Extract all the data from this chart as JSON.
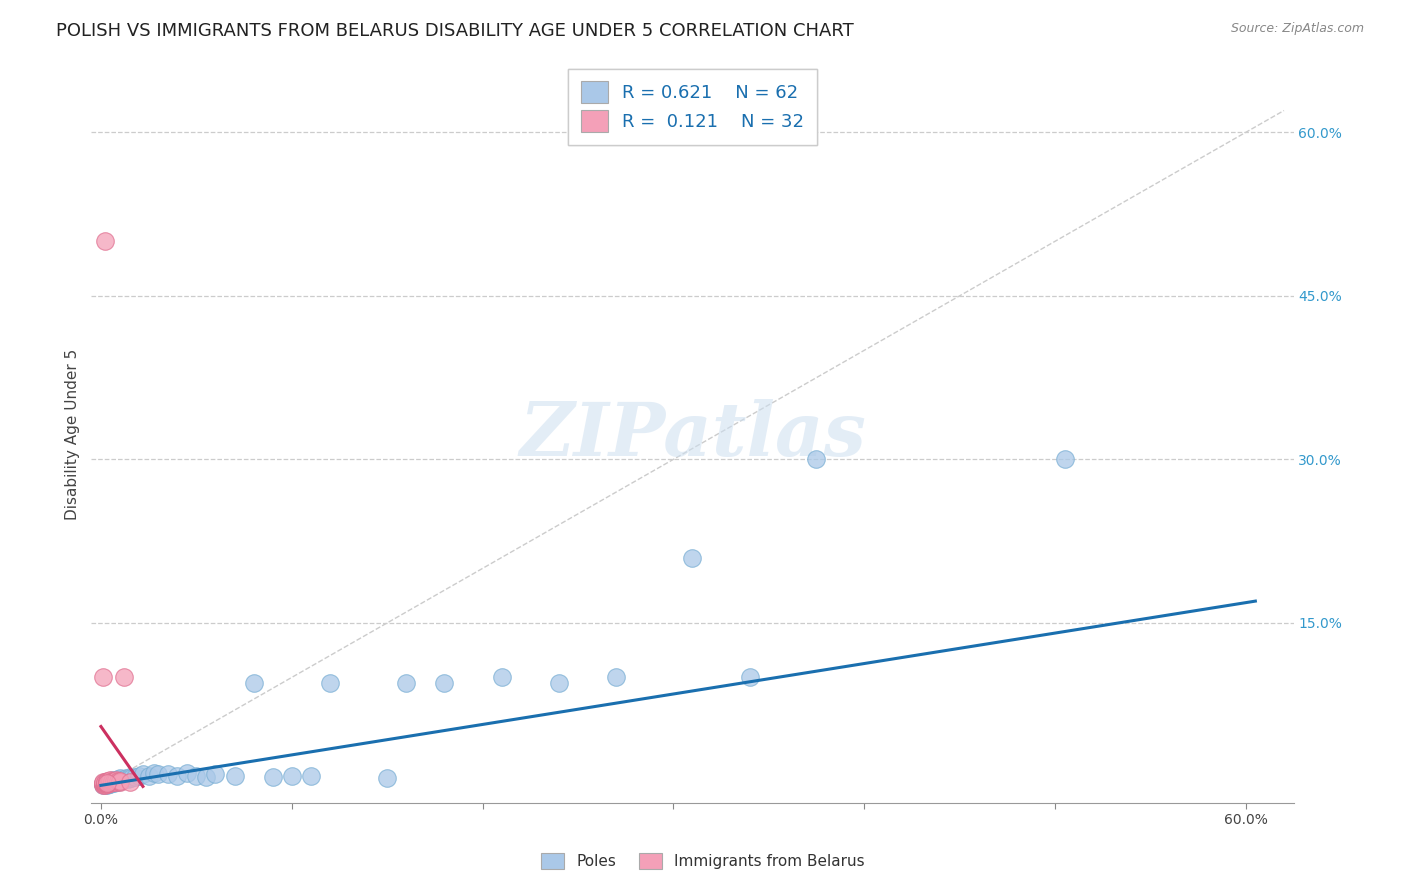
{
  "title": "POLISH VS IMMIGRANTS FROM BELARUS DISABILITY AGE UNDER 5 CORRELATION CHART",
  "source": "Source: ZipAtlas.com",
  "ylabel": "Disability Age Under 5",
  "xlim_min": -0.005,
  "xlim_max": 0.625,
  "ylim_min": -0.015,
  "ylim_max": 0.66,
  "poles_R": 0.621,
  "poles_N": 62,
  "belarus_R": 0.121,
  "belarus_N": 32,
  "poles_color": "#aac8e8",
  "poles_edge_color": "#7aafd4",
  "poles_line_color": "#1a6faf",
  "belarus_color": "#f4a0b8",
  "belarus_edge_color": "#e07090",
  "belarus_line_color": "#cc3060",
  "grid_color": "#cccccc",
  "legend_label_poles": "Poles",
  "legend_label_belarus": "Immigrants from Belarus",
  "right_ytick_color": "#3399cc",
  "poles_x": [
    0.001,
    0.001,
    0.001,
    0.002,
    0.002,
    0.002,
    0.002,
    0.003,
    0.003,
    0.003,
    0.003,
    0.004,
    0.004,
    0.004,
    0.005,
    0.005,
    0.005,
    0.006,
    0.006,
    0.006,
    0.007,
    0.007,
    0.008,
    0.008,
    0.009,
    0.009,
    0.01,
    0.01,
    0.011,
    0.012,
    0.013,
    0.014,
    0.015,
    0.016,
    0.018,
    0.02,
    0.022,
    0.025,
    0.028,
    0.03,
    0.035,
    0.04,
    0.045,
    0.05,
    0.055,
    0.06,
    0.07,
    0.08,
    0.09,
    0.1,
    0.11,
    0.12,
    0.15,
    0.16,
    0.18,
    0.21,
    0.24,
    0.27,
    0.31,
    0.34,
    0.375,
    0.505
  ],
  "poles_y": [
    0.001,
    0.002,
    0.003,
    0.001,
    0.002,
    0.003,
    0.004,
    0.001,
    0.002,
    0.003,
    0.004,
    0.002,
    0.003,
    0.004,
    0.002,
    0.003,
    0.005,
    0.003,
    0.004,
    0.006,
    0.003,
    0.005,
    0.004,
    0.006,
    0.004,
    0.007,
    0.005,
    0.008,
    0.006,
    0.007,
    0.008,
    0.007,
    0.009,
    0.008,
    0.009,
    0.01,
    0.011,
    0.01,
    0.012,
    0.011,
    0.011,
    0.01,
    0.012,
    0.01,
    0.009,
    0.011,
    0.01,
    0.095,
    0.009,
    0.01,
    0.01,
    0.095,
    0.008,
    0.095,
    0.095,
    0.1,
    0.095,
    0.1,
    0.21,
    0.1,
    0.3,
    0.3
  ],
  "belarus_x": [
    0.001,
    0.001,
    0.001,
    0.001,
    0.002,
    0.002,
    0.002,
    0.002,
    0.002,
    0.003,
    0.003,
    0.003,
    0.003,
    0.004,
    0.004,
    0.004,
    0.005,
    0.005,
    0.005,
    0.006,
    0.006,
    0.007,
    0.007,
    0.008,
    0.008,
    0.009,
    0.01,
    0.01,
    0.012,
    0.015,
    0.001,
    0.003
  ],
  "belarus_y": [
    0.001,
    0.002,
    0.003,
    0.004,
    0.001,
    0.002,
    0.003,
    0.5,
    0.004,
    0.002,
    0.003,
    0.004,
    0.005,
    0.003,
    0.004,
    0.005,
    0.003,
    0.004,
    0.006,
    0.004,
    0.005,
    0.004,
    0.005,
    0.004,
    0.006,
    0.005,
    0.004,
    0.005,
    0.1,
    0.004,
    0.1,
    0.003
  ],
  "poles_line_x0": 0.0,
  "poles_line_x1": 0.605,
  "poles_line_y0": 0.001,
  "poles_line_y1": 0.17,
  "belarus_line_x0": 0.0,
  "belarus_line_x1": 0.022,
  "belarus_line_y0": 0.055,
  "belarus_line_y1": 0.0
}
